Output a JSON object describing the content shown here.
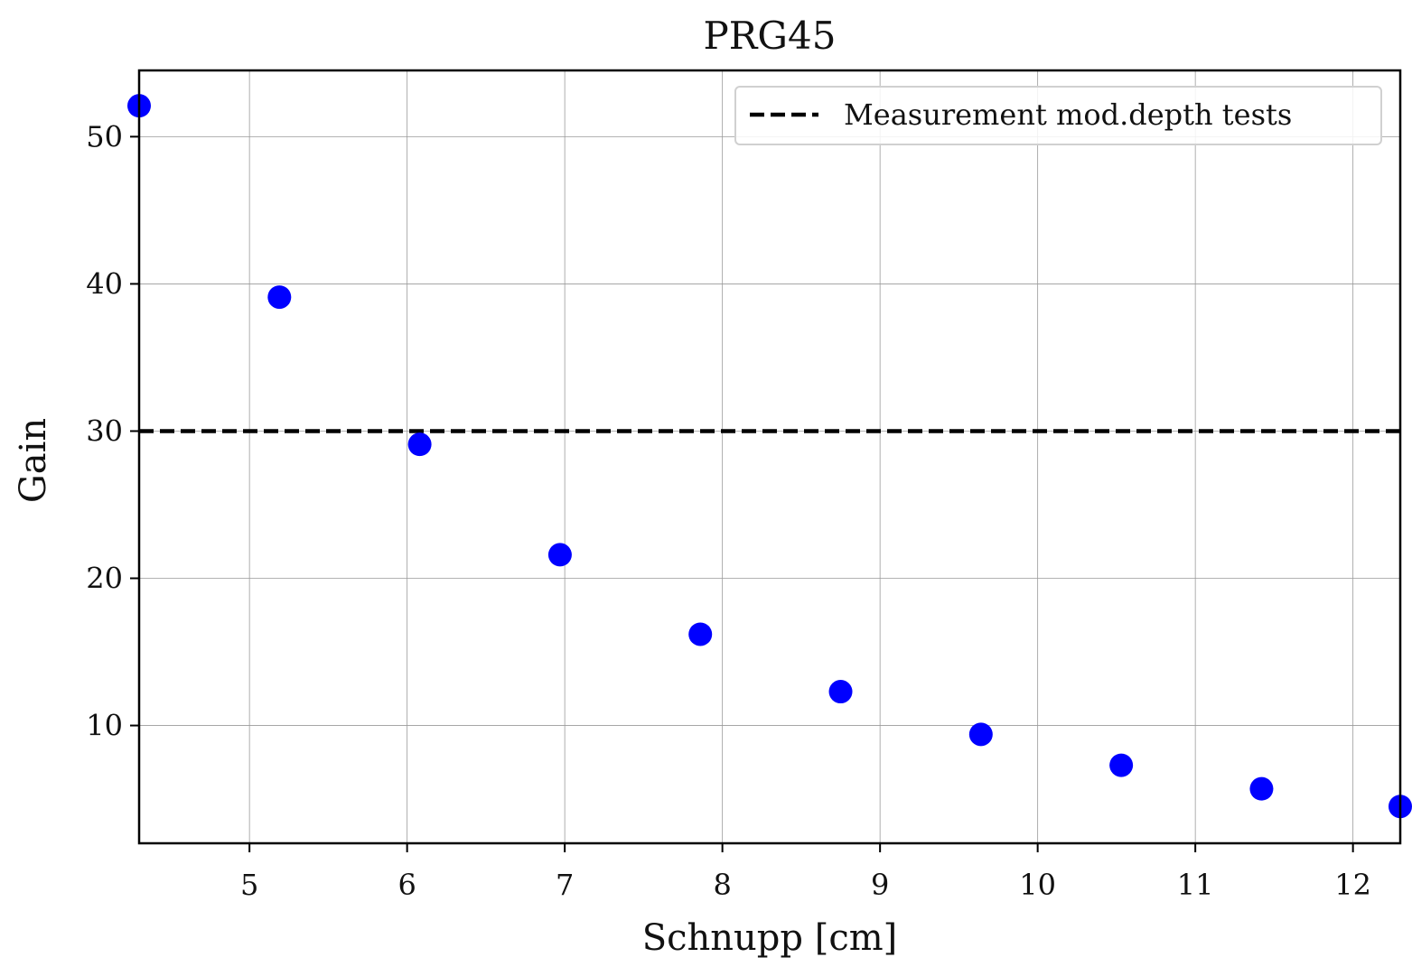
{
  "chart_data": {
    "type": "scatter",
    "title": "PRG45",
    "xlabel": "Schnupp [cm]",
    "ylabel": "Gain",
    "xlim": [
      4.3,
      12.3
    ],
    "ylim": [
      2.0,
      54.5
    ],
    "xticks": [
      5,
      6,
      7,
      8,
      9,
      10,
      11,
      12
    ],
    "yticks": [
      10,
      20,
      30,
      40,
      50
    ],
    "grid": true,
    "legend_position": "top-right",
    "series": [
      {
        "marker_color": "#0000ff",
        "x": [
          4.3,
          5.19,
          6.08,
          6.97,
          7.86,
          8.75,
          9.64,
          10.53,
          11.42,
          12.3
        ],
        "y": [
          52.1,
          39.1,
          29.1,
          21.6,
          16.2,
          12.3,
          9.4,
          7.3,
          5.7,
          4.5
        ]
      }
    ],
    "hlines": [
      {
        "name": "Measurement mod.depth tests",
        "y": 30,
        "color": "#000000",
        "style": "dashed"
      }
    ]
  }
}
